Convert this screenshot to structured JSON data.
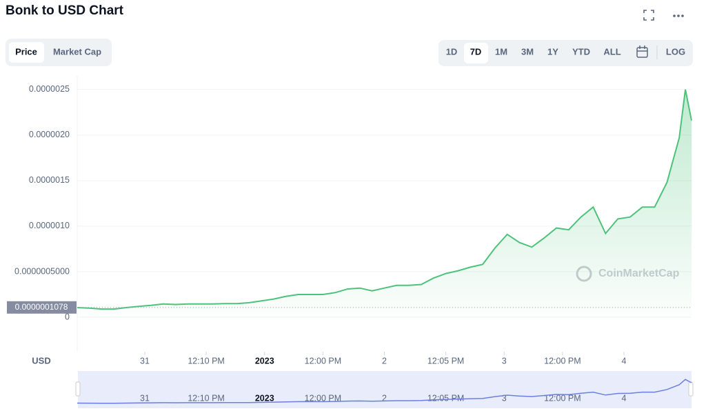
{
  "header": {
    "title": "Bonk to USD Chart",
    "tabs": [
      "Price",
      "Market Cap"
    ],
    "ranges": [
      "1D",
      "7D",
      "1M",
      "3M",
      "1Y",
      "YTD",
      "ALL"
    ],
    "log": "LOG"
  },
  "chart_data": {
    "type": "line",
    "y_axis_label": "USD",
    "watermark": "CoinMarketCap",
    "color": "#4cc27a",
    "grid": true,
    "x": [
      0,
      2,
      4,
      6,
      8,
      10,
      12,
      14,
      16,
      18,
      20,
      22,
      24,
      26,
      28,
      30,
      32,
      34,
      36,
      38,
      40,
      42,
      44,
      46,
      48,
      50,
      52,
      54,
      56,
      58,
      60,
      62,
      64,
      66,
      68,
      70,
      72,
      74,
      76,
      78,
      80,
      82,
      84,
      86,
      88,
      90,
      92,
      94,
      96,
      98,
      99,
      100
    ],
    "values": [
      1.06e-07,
      1e-07,
      9e-08,
      9e-08,
      1.06e-07,
      1.2e-07,
      1.3e-07,
      1.45e-07,
      1.4e-07,
      1.45e-07,
      1.45e-07,
      1.45e-07,
      1.5e-07,
      1.5e-07,
      1.6e-07,
      1.8e-07,
      2e-07,
      2.3e-07,
      2.5e-07,
      2.5e-07,
      2.5e-07,
      2.7e-07,
      3.1e-07,
      3.2e-07,
      2.9e-07,
      3.2e-07,
      3.5e-07,
      3.5e-07,
      3.6e-07,
      4.3e-07,
      4.8e-07,
      5.1e-07,
      5.5e-07,
      5.8e-07,
      7.6e-07,
      9.1e-07,
      8.2e-07,
      7.7e-07,
      8.7e-07,
      9.8e-07,
      9.6e-07,
      1.1e-06,
      1.21e-06,
      9.2e-07,
      1.08e-06,
      1.1e-06,
      1.21e-06,
      1.21e-06,
      1.48e-06,
      1.97e-06,
      2.5e-06,
      2.16e-06
    ],
    "xlim": [
      0,
      100
    ],
    "xticks": [
      {
        "value": 11,
        "label": "31"
      },
      {
        "value": 21,
        "label": "12:10 PM"
      },
      {
        "value": 30.5,
        "label": "2023"
      },
      {
        "value": 40,
        "label": "12:00 PM"
      },
      {
        "value": 50,
        "label": "2"
      },
      {
        "value": 60,
        "label": "12:05 PM"
      },
      {
        "value": 69.5,
        "label": "3"
      },
      {
        "value": 79,
        "label": "12:00 PM"
      },
      {
        "value": 89,
        "label": "4"
      }
    ],
    "ylim": [
      0,
      2.65e-06
    ],
    "yticks": [
      0,
      {
        "value": 5e-07,
        "label": "0.0000005000"
      },
      {
        "value": 1e-06,
        "label": "0.0000010"
      },
      {
        "value": 1.5e-06,
        "label": "0.0000015"
      },
      {
        "value": 2e-06,
        "label": "0.0000020"
      },
      {
        "value": 2.5e-06,
        "label": "0.0000025"
      }
    ],
    "current_price": {
      "value": 1.078e-07,
      "label": "0.0000001078"
    }
  }
}
